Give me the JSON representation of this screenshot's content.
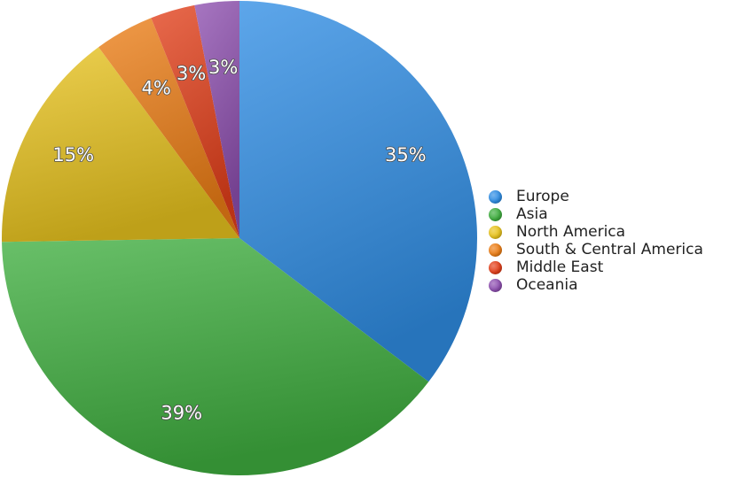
{
  "chart_data": {
    "type": "pie",
    "slices": [
      {
        "name": "Europe",
        "value": 35,
        "label": "35%",
        "color": "#2f8de4"
      },
      {
        "name": "Asia",
        "value": 39,
        "label": "39%",
        "color": "#3fae3f"
      },
      {
        "name": "North America",
        "value": 15,
        "label": "15%",
        "color": "#e8c31e"
      },
      {
        "name": "South & Central America",
        "value": 4,
        "label": "4%",
        "color": "#ec7e16"
      },
      {
        "name": "Middle East",
        "value": 3,
        "label": "3%",
        "color": "#e3401b"
      },
      {
        "name": "Oceania",
        "value": 3,
        "label": "3%",
        "color": "#8e4fb0"
      }
    ],
    "legend_position": "right"
  }
}
